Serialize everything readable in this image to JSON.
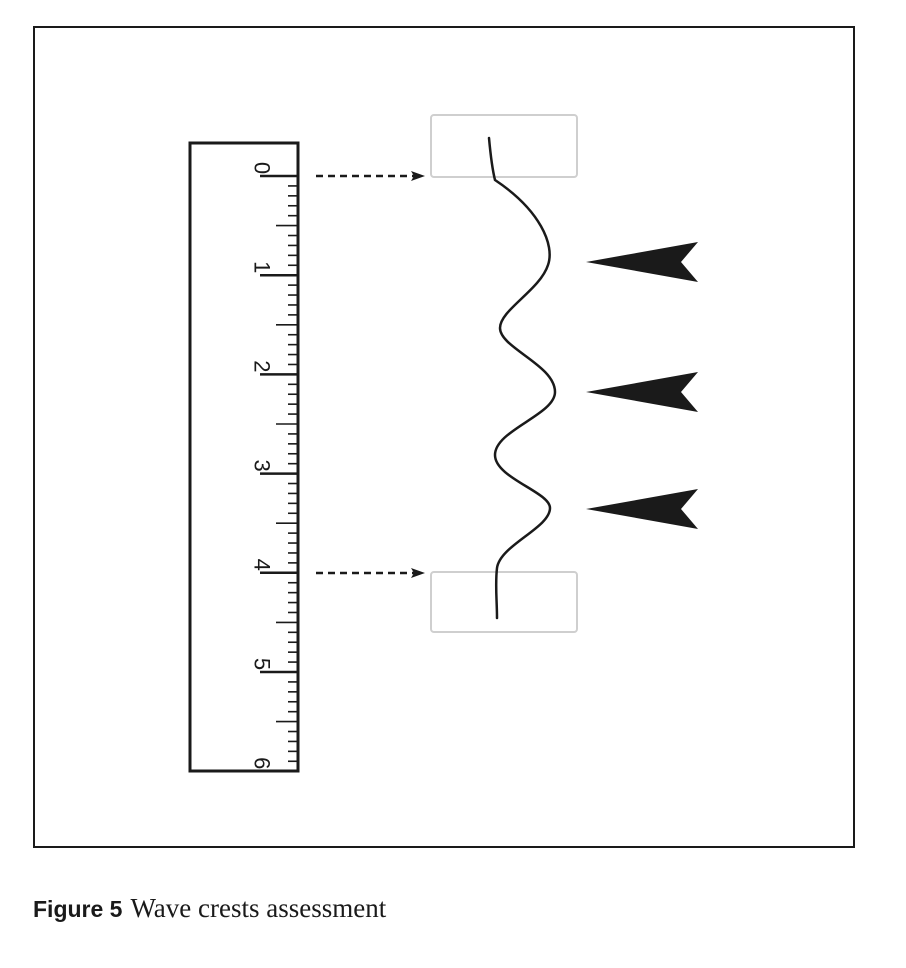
{
  "ruler": {
    "labels": [
      "0",
      "1",
      "2",
      "3",
      "4",
      "5",
      "6"
    ]
  },
  "caption": {
    "label": "Figure 5",
    "text": "Wave crests assessment"
  },
  "colors": {
    "ink": "#1a1a1a",
    "clamp_border": "#cfcfcf"
  }
}
